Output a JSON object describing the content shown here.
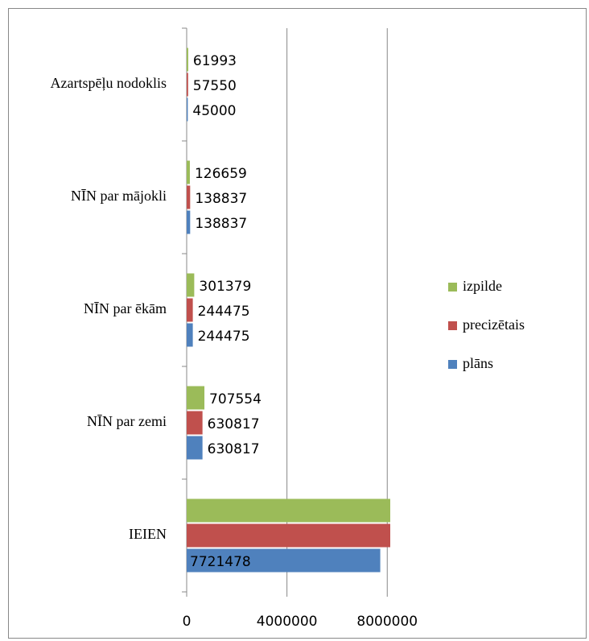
{
  "chart_data": {
    "type": "barh",
    "categories": [
      "IEIEN",
      "NĪN par zemi",
      "NĪN par ēkām",
      "NĪN par mājokli",
      "Azartspēļu nodoklis"
    ],
    "series": [
      {
        "name": "plāns",
        "color": "#4f81bd",
        "values": [
          7721478,
          630817,
          244475,
          138837,
          45000
        ],
        "value_labels": [
          "7721478",
          "630817",
          "244475",
          "138837",
          "45000"
        ]
      },
      {
        "name": "precizētais",
        "color": "#c0504d",
        "values": [
          8120000,
          630817,
          244475,
          138837,
          57550
        ],
        "value_labels": [
          null,
          "630817",
          "244475",
          "138837",
          "57550"
        ]
      },
      {
        "name": "izpilde",
        "color": "#9bbb59",
        "values": [
          8120000,
          707554,
          301379,
          126659,
          61993
        ],
        "value_labels": [
          null,
          "707554",
          "301379",
          "126659",
          "61993"
        ]
      }
    ],
    "xlim": [
      0,
      8120000
    ],
    "xticks": [
      0,
      4000000,
      8000000
    ],
    "grid": true,
    "legend": "right"
  }
}
